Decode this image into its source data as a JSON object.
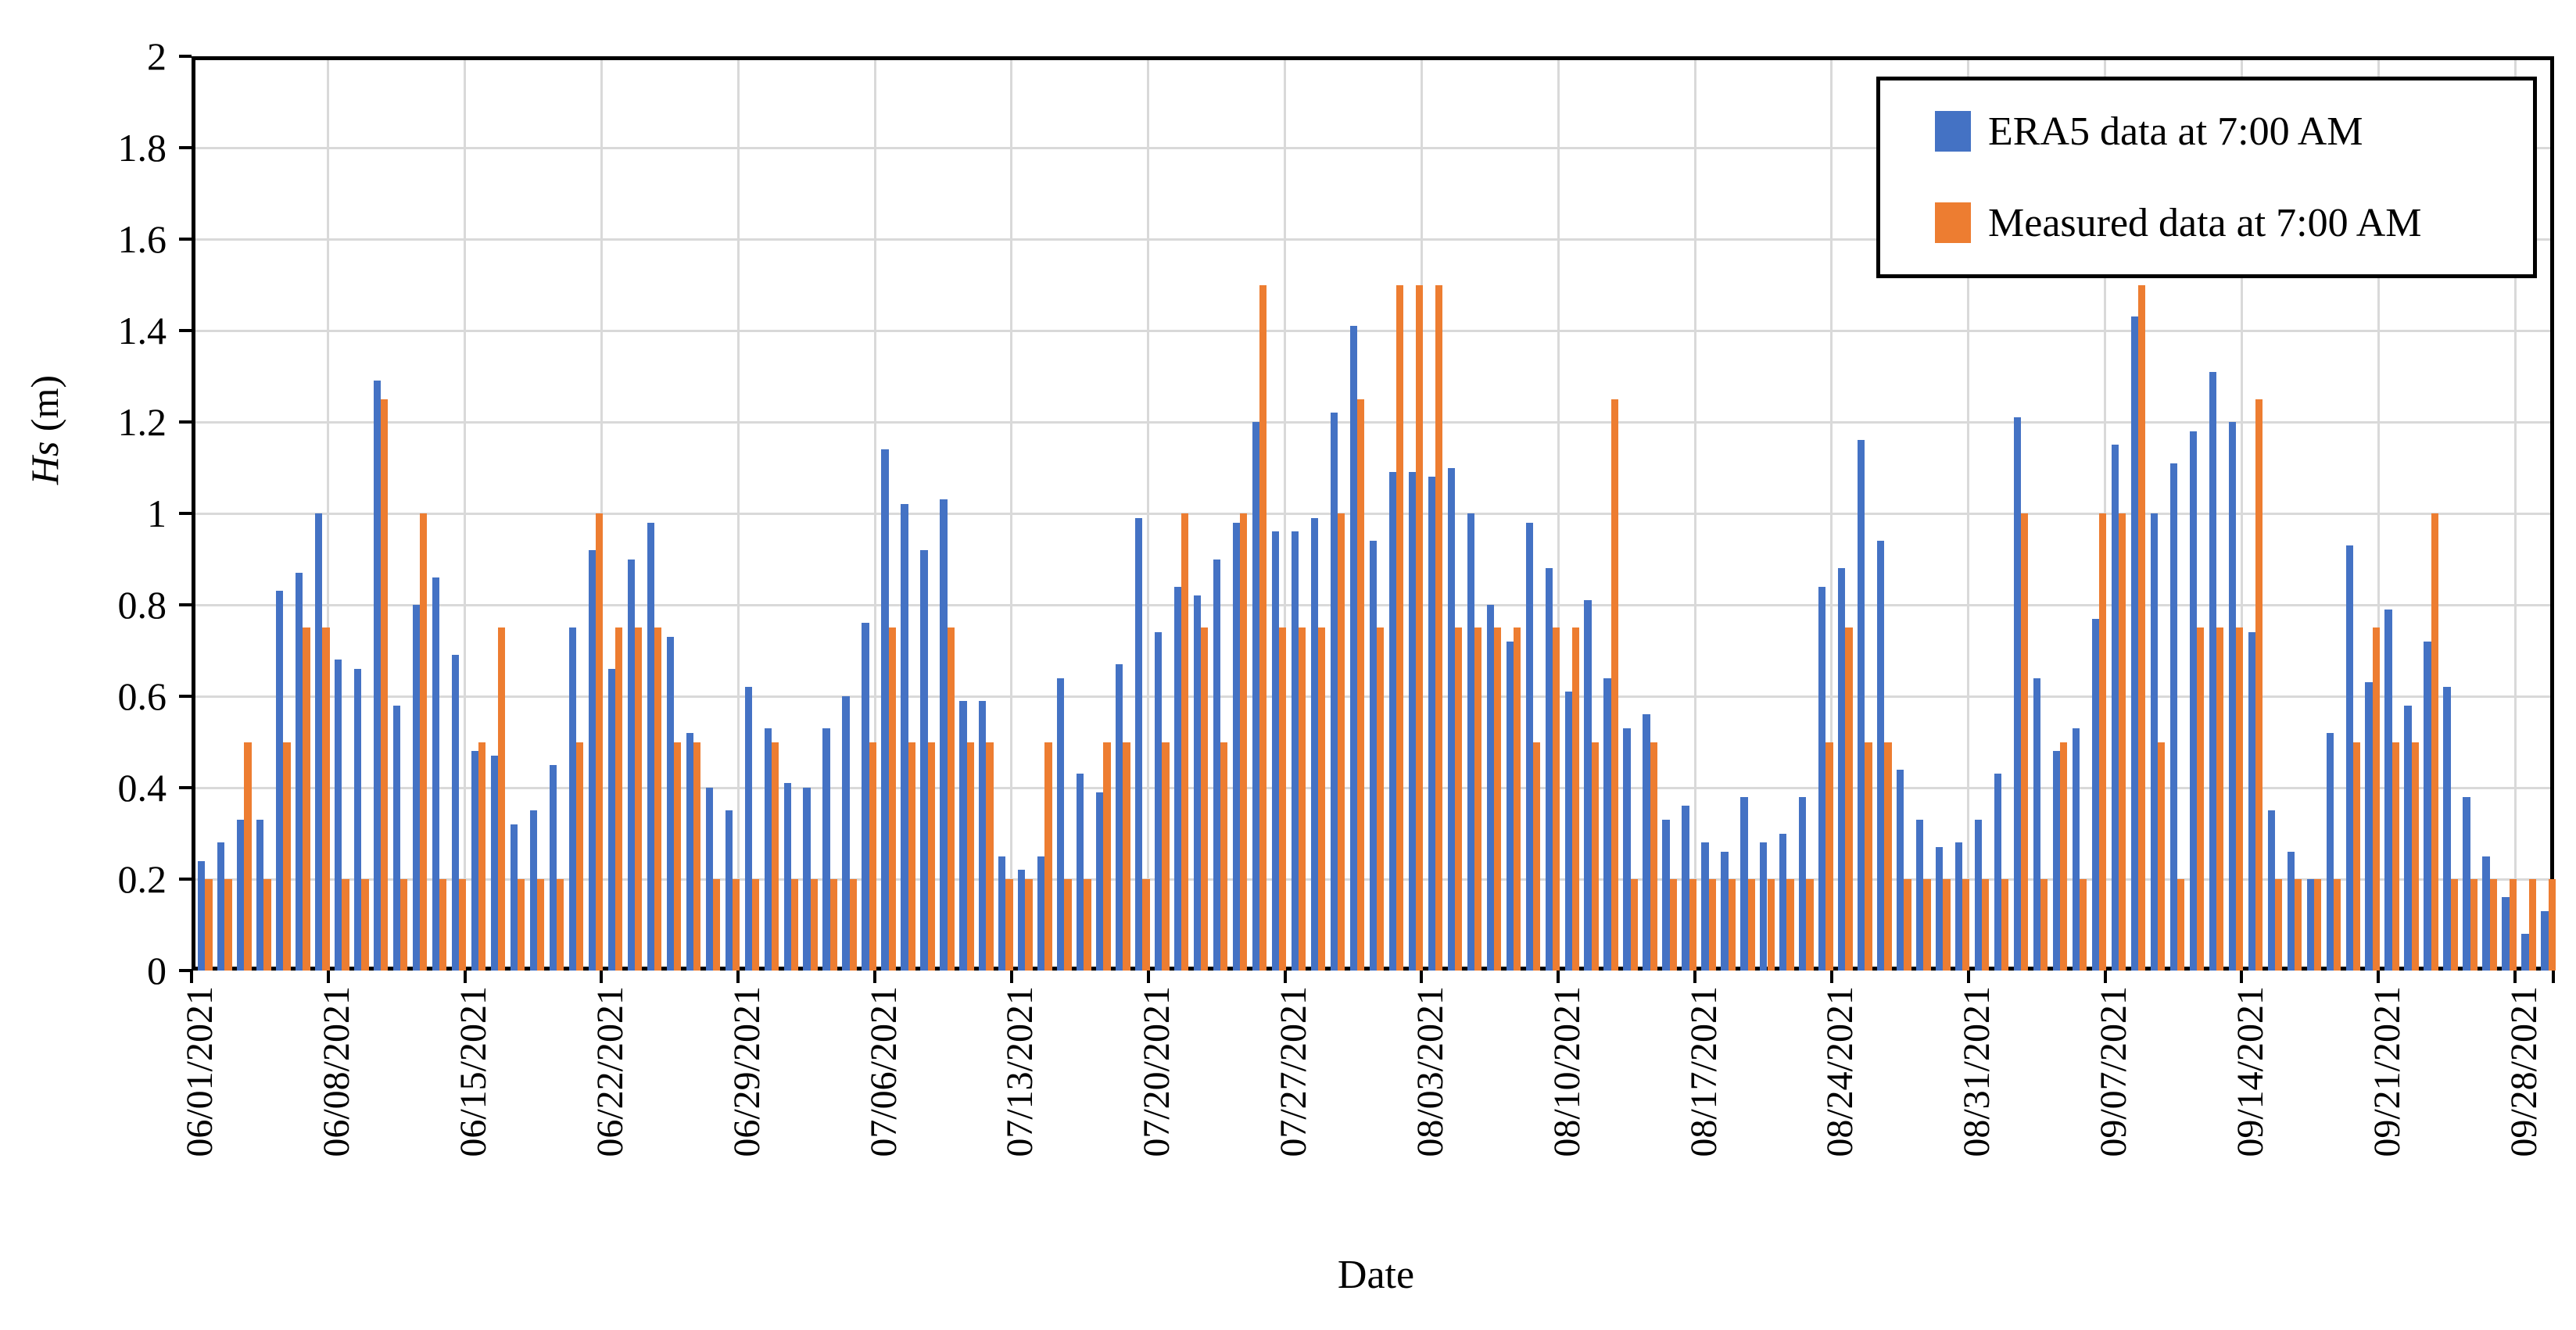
{
  "axes": {
    "x_title": "Date",
    "y_title_italic": "Hs",
    "y_title_rest": " (m)"
  },
  "legend": {
    "items": [
      {
        "label": "ERA5 data at 7:00 AM",
        "color": "#4472c4"
      },
      {
        "label": "Measured data at 7:00 AM",
        "color": "#ed7d31"
      }
    ]
  },
  "chart_data": {
    "type": "bar",
    "title": "",
    "xlabel": "Date",
    "ylabel": "Hs (m)",
    "ylim": [
      0,
      2
    ],
    "ytick_step": 0.2,
    "yticks": [
      "0",
      "0.2",
      "0.4",
      "0.6",
      "0.8",
      "1",
      "1.2",
      "1.4",
      "1.6",
      "1.8",
      "2"
    ],
    "grid": true,
    "gridline_color": "#d9d9d9",
    "legend_position": "top-right",
    "x_tick_interval": 7,
    "x_tick_labels": [
      "06/01/2021",
      "06/08/2021",
      "06/15/2021",
      "06/22/2021",
      "06/29/2021",
      "07/06/2021",
      "07/13/2021",
      "07/20/2021",
      "07/27/2021",
      "08/03/2021",
      "08/10/2021",
      "08/17/2021",
      "08/24/2021",
      "08/31/2021",
      "09/07/2021",
      "09/14/2021",
      "09/21/2021",
      "09/28/2021"
    ],
    "categories": [
      "06/01/2021",
      "06/02/2021",
      "06/03/2021",
      "06/04/2021",
      "06/05/2021",
      "06/06/2021",
      "06/07/2021",
      "06/08/2021",
      "06/09/2021",
      "06/10/2021",
      "06/11/2021",
      "06/12/2021",
      "06/13/2021",
      "06/14/2021",
      "06/15/2021",
      "06/16/2021",
      "06/17/2021",
      "06/18/2021",
      "06/19/2021",
      "06/20/2021",
      "06/21/2021",
      "06/22/2021",
      "06/23/2021",
      "06/24/2021",
      "06/25/2021",
      "06/26/2021",
      "06/27/2021",
      "06/28/2021",
      "06/29/2021",
      "06/30/2021",
      "07/01/2021",
      "07/02/2021",
      "07/03/2021",
      "07/04/2021",
      "07/05/2021",
      "07/06/2021",
      "07/07/2021",
      "07/08/2021",
      "07/09/2021",
      "07/10/2021",
      "07/11/2021",
      "07/12/2021",
      "07/13/2021",
      "07/14/2021",
      "07/15/2021",
      "07/16/2021",
      "07/17/2021",
      "07/18/2021",
      "07/19/2021",
      "07/20/2021",
      "07/21/2021",
      "07/22/2021",
      "07/23/2021",
      "07/24/2021",
      "07/25/2021",
      "07/26/2021",
      "07/27/2021",
      "07/28/2021",
      "07/29/2021",
      "07/30/2021",
      "07/31/2021",
      "08/01/2021",
      "08/02/2021",
      "08/03/2021",
      "08/04/2021",
      "08/05/2021",
      "08/06/2021",
      "08/07/2021",
      "08/08/2021",
      "08/09/2021",
      "08/10/2021",
      "08/11/2021",
      "08/12/2021",
      "08/13/2021",
      "08/14/2021",
      "08/15/2021",
      "08/16/2021",
      "08/17/2021",
      "08/18/2021",
      "08/19/2021",
      "08/20/2021",
      "08/21/2021",
      "08/22/2021",
      "08/23/2021",
      "08/24/2021",
      "08/25/2021",
      "08/26/2021",
      "08/27/2021",
      "08/28/2021",
      "08/29/2021",
      "08/30/2021",
      "08/31/2021",
      "09/01/2021",
      "09/02/2021",
      "09/03/2021",
      "09/04/2021",
      "09/05/2021",
      "09/06/2021",
      "09/07/2021",
      "09/08/2021",
      "09/09/2021",
      "09/10/2021",
      "09/11/2021",
      "09/12/2021",
      "09/13/2021",
      "09/14/2021",
      "09/15/2021",
      "09/16/2021",
      "09/17/2021",
      "09/18/2021",
      "09/19/2021",
      "09/20/2021",
      "09/21/2021",
      "09/22/2021",
      "09/23/2021",
      "09/24/2021",
      "09/25/2021",
      "09/26/2021",
      "09/27/2021",
      "09/28/2021",
      "09/29/2021"
    ],
    "series": [
      {
        "name": "ERA5 data at 7:00 AM",
        "color": "#4472c4",
        "values": [
          0.24,
          0.28,
          0.33,
          0.33,
          0.83,
          0.87,
          1.0,
          0.68,
          0.66,
          1.29,
          0.58,
          0.8,
          0.86,
          0.69,
          0.48,
          0.47,
          0.32,
          0.35,
          0.45,
          0.75,
          0.92,
          0.66,
          0.9,
          0.98,
          0.73,
          0.52,
          0.4,
          0.35,
          0.62,
          0.53,
          0.41,
          0.4,
          0.53,
          0.6,
          0.76,
          1.14,
          1.02,
          0.92,
          1.03,
          0.59,
          0.59,
          0.25,
          0.22,
          0.25,
          0.64,
          0.43,
          0.39,
          0.67,
          0.99,
          0.74,
          0.84,
          0.82,
          0.9,
          0.98,
          1.2,
          0.96,
          0.96,
          0.99,
          1.22,
          1.41,
          0.94,
          1.09,
          1.09,
          1.08,
          1.1,
          1.0,
          0.8,
          0.72,
          0.98,
          0.88,
          0.61,
          0.81,
          0.64,
          0.53,
          0.56,
          0.33,
          0.36,
          0.28,
          0.26,
          0.38,
          0.28,
          0.3,
          0.38,
          0.84,
          0.88,
          1.16,
          0.94,
          0.44,
          0.33,
          0.27,
          0.28,
          0.33,
          0.43,
          1.21,
          0.64,
          0.48,
          0.53,
          0.77,
          1.15,
          1.43,
          1.0,
          1.11,
          1.18,
          1.31,
          1.2,
          0.74,
          0.35,
          0.26,
          0.2,
          0.52,
          0.93,
          0.63,
          0.79,
          0.58,
          0.72,
          0.62,
          0.38,
          0.25,
          0.16,
          0.08,
          0.13
        ]
      },
      {
        "name": "Measured data at 7:00 AM",
        "color": "#ed7d31",
        "values": [
          0.2,
          0.2,
          0.5,
          0.2,
          0.5,
          0.75,
          0.75,
          0.2,
          0.2,
          1.25,
          0.2,
          1.0,
          0.2,
          0.2,
          0.5,
          0.75,
          0.2,
          0.2,
          0.2,
          0.5,
          1.0,
          0.75,
          0.75,
          0.75,
          0.5,
          0.5,
          0.2,
          0.2,
          0.2,
          0.5,
          0.2,
          0.2,
          0.2,
          0.2,
          0.5,
          0.75,
          0.5,
          0.5,
          0.75,
          0.5,
          0.5,
          0.2,
          0.2,
          0.5,
          0.2,
          0.2,
          0.5,
          0.5,
          0.2,
          0.5,
          1.0,
          0.75,
          0.5,
          1.0,
          1.5,
          0.75,
          0.75,
          0.75,
          1.0,
          1.25,
          0.75,
          1.5,
          1.5,
          1.5,
          0.75,
          0.75,
          0.75,
          0.75,
          0.5,
          0.75,
          0.75,
          0.5,
          1.25,
          0.2,
          0.5,
          0.2,
          0.2,
          0.2,
          0.2,
          0.2,
          0.2,
          0.2,
          0.2,
          0.5,
          0.75,
          0.5,
          0.5,
          0.2,
          0.2,
          0.2,
          0.2,
          0.2,
          0.2,
          1.0,
          0.2,
          0.5,
          0.2,
          1.0,
          1.0,
          1.5,
          0.5,
          0.2,
          0.75,
          0.75,
          0.75,
          1.25,
          0.2,
          0.2,
          0.2,
          0.2,
          0.5,
          0.75,
          0.5,
          0.5,
          1.0,
          0.2,
          0.2,
          0.2,
          0.2,
          0.2,
          0.2
        ]
      }
    ]
  }
}
